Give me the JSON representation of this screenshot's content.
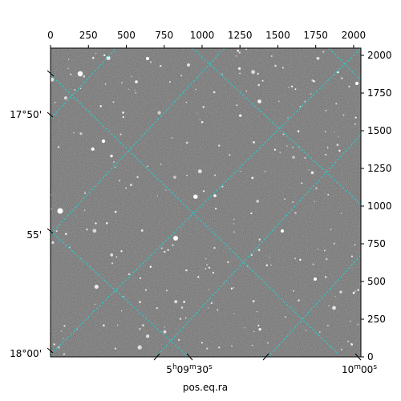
{
  "figure": {
    "xlabel": "pos.eq.ra",
    "pixel_axes": {
      "top_ticks": [
        "0",
        "250",
        "500",
        "750",
        "1000",
        "1250",
        "1500",
        "1750",
        "2000"
      ],
      "top_tick_values": [
        0,
        250,
        500,
        750,
        1000,
        1250,
        1500,
        1750,
        2000
      ],
      "right_ticks": [
        "0",
        "250",
        "500",
        "750",
        "1000",
        "1250",
        "1500",
        "1750",
        "2000"
      ],
      "right_tick_values": [
        0,
        250,
        500,
        750,
        1000,
        1250,
        1500,
        1750,
        2000
      ],
      "pixel_range": [
        0,
        2048
      ]
    },
    "world_axes": {
      "dec_labels": [
        {
          "label": "17°50'",
          "value": 1500
        },
        {
          "label": "55'",
          "value": 750
        },
        {
          "label": "18°00'",
          "value": 0
        }
      ],
      "ra_labels": [
        {
          "main": "5",
          "sup1": "h",
          "mid": "09",
          "sup2": "m",
          "end": "30",
          "sup3": "s",
          "value": 930
        },
        {
          "main": "10",
          "sup1": "m",
          "mid": "00",
          "sup2": "s",
          "end": "",
          "sup3": "",
          "value": 2000
        }
      ]
    },
    "grid_color": "#22cfd0",
    "image_background": "#6e6e6e"
  }
}
